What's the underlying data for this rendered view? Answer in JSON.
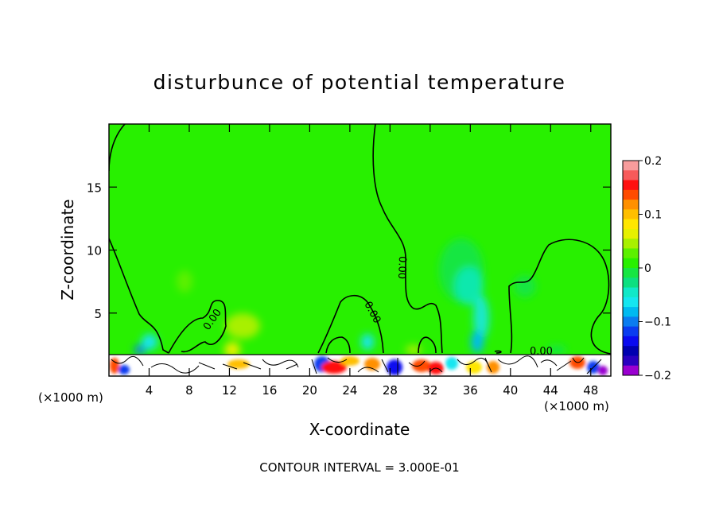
{
  "chart_data": {
    "type": "heatmap",
    "title": "disturbunce of potential temperature",
    "xlabel": "X-coordinate",
    "ylabel": "Z-coordinate",
    "x_unit": "(×1000 m)",
    "x_unit_right": "(×1000 m)",
    "xlim": [
      0,
      50
    ],
    "ylim": [
      0,
      20
    ],
    "x_ticks": [
      4,
      8,
      12,
      16,
      20,
      24,
      28,
      32,
      36,
      40,
      44,
      48
    ],
    "x_tick_labels": [
      "4",
      "8",
      "12",
      "16",
      "20",
      "24",
      "28",
      "32",
      "36",
      "40",
      "44",
      "48"
    ],
    "y_ticks": [
      5,
      10,
      15
    ],
    "y_tick_labels": [
      "5",
      "10",
      "15"
    ],
    "colorbar": {
      "min": -0.2,
      "max": 0.2,
      "ticks": [
        0.2,
        0.1,
        0,
        -0.1,
        -0.2
      ],
      "tick_labels": [
        "0.2",
        "0.1",
        "0",
        "−0.1",
        "−0.2"
      ],
      "colors": [
        "#f79c9c",
        "#f75a5a",
        "#ff1010",
        "#ff4b00",
        "#ff9000",
        "#ffbf00",
        "#ffe600",
        "#e6f000",
        "#a8f000",
        "#5cf000",
        "#28f000",
        "#16e642",
        "#0ce080",
        "#10e8c8",
        "#14e6f0",
        "#00baf0",
        "#0a7cf0",
        "#0a3cf0",
        "#0a0af0",
        "#0000b0",
        "#2a00c0",
        "#9a00d0"
      ]
    },
    "contour_labels": [
      "0.00",
      "0.00",
      "0.00",
      "0.00"
    ],
    "footer": "CONTOUR INTERVAL = 3.000E-01"
  }
}
